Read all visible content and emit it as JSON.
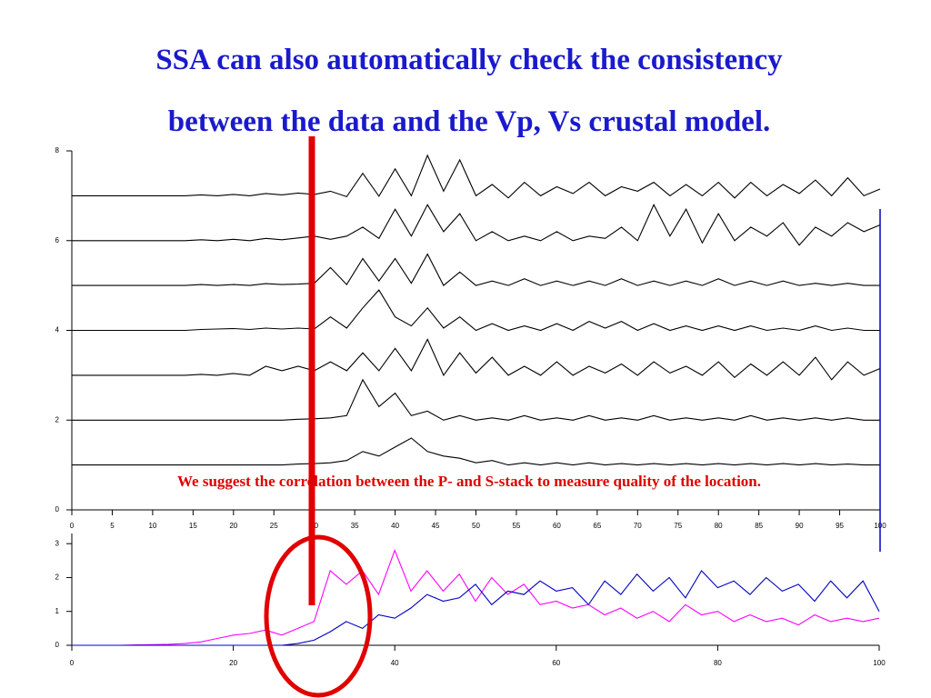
{
  "slide": {
    "title": [
      "SSA can also automatically check the consistency",
      "between the data and the Vp, Vs crustal model."
    ],
    "note": "We suggest the correlation between the P- and S-stack to measure quality of the location."
  },
  "chart_data": [
    {
      "type": "line",
      "xlim": [
        0,
        100
      ],
      "ylim": [
        0,
        8
      ],
      "xticks": [
        0,
        5,
        10,
        15,
        20,
        25,
        30,
        35,
        40,
        45,
        50,
        55,
        60,
        65,
        70,
        75,
        80,
        85,
        90,
        95,
        100
      ],
      "yticks": [
        0,
        2,
        4,
        6,
        8
      ],
      "x": [
        0,
        2,
        4,
        6,
        8,
        10,
        12,
        14,
        16,
        18,
        20,
        22,
        24,
        26,
        28,
        30,
        32,
        34,
        36,
        38,
        40,
        42,
        44,
        46,
        48,
        50,
        52,
        54,
        56,
        58,
        60,
        62,
        64,
        66,
        68,
        70,
        72,
        74,
        76,
        78,
        80,
        82,
        84,
        86,
        88,
        90,
        92,
        94,
        96,
        98,
        100
      ],
      "series": [
        {
          "color": "#000000",
          "values": [
            7,
            7,
            7,
            7,
            7,
            7,
            7,
            7,
            7.02,
            7,
            7.03,
            7,
            7.05,
            7.02,
            7.06,
            7.03,
            7.1,
            6.98,
            7.5,
            6.99,
            7.6,
            7.0,
            7.9,
            7.1,
            7.8,
            7.0,
            7.25,
            6.95,
            7.3,
            7.0,
            7.2,
            7.05,
            7.3,
            7.0,
            7.2,
            7.1,
            7.3,
            7.0,
            7.25,
            7.0,
            7.3,
            6.95,
            7.3,
            7.0,
            7.25,
            7.05,
            7.35,
            7.0,
            7.4,
            7.0,
            7.15
          ]
        },
        {
          "color": "#000000",
          "values": [
            6,
            6,
            6,
            6,
            6,
            6,
            6,
            6,
            6.02,
            6,
            6.03,
            6,
            6.05,
            6.02,
            6.06,
            6.1,
            6.03,
            6.1,
            6.3,
            6.05,
            6.7,
            6.1,
            6.8,
            6.2,
            6.6,
            6.0,
            6.2,
            6.0,
            6.1,
            6.0,
            6.2,
            6.0,
            6.1,
            6.05,
            6.3,
            6.0,
            6.8,
            6.1,
            6.7,
            5.95,
            6.6,
            6.0,
            6.3,
            6.1,
            6.4,
            5.9,
            6.3,
            6.1,
            6.4,
            6.2,
            6.35
          ]
        },
        {
          "color": "#000000",
          "values": [
            5,
            5,
            5,
            5,
            5,
            5,
            5,
            5,
            5.02,
            5,
            5.02,
            5,
            5.04,
            5.02,
            5.03,
            5.05,
            5.4,
            5.02,
            5.6,
            5.1,
            5.6,
            5.05,
            5.7,
            5.0,
            5.3,
            5.0,
            5.1,
            5.0,
            5.15,
            5.0,
            5.1,
            5.0,
            5.1,
            5.0,
            5.15,
            5.0,
            5.1,
            5.0,
            5.1,
            5.0,
            5.15,
            5.0,
            5.1,
            5.0,
            5.1,
            5.0,
            5.05,
            5.0,
            5.05,
            5.0,
            5.0
          ]
        },
        {
          "color": "#000000",
          "values": [
            4,
            4,
            4,
            4,
            4,
            4,
            4,
            4,
            4.02,
            4.03,
            4.04,
            4.02,
            4.05,
            4.03,
            4.05,
            4.03,
            4.3,
            4.05,
            4.5,
            4.9,
            4.3,
            4.1,
            4.5,
            4.05,
            4.3,
            4.0,
            4.15,
            4.0,
            4.1,
            4.0,
            4.15,
            4.0,
            4.2,
            4.05,
            4.2,
            4.0,
            4.15,
            4.0,
            4.1,
            4.0,
            4.1,
            4.0,
            4.1,
            4.0,
            4.05,
            4.0,
            4.1,
            4.0,
            4.05,
            4.0,
            4.0
          ]
        },
        {
          "color": "#000000",
          "values": [
            3,
            3,
            3,
            3,
            3,
            3,
            3,
            3,
            3.02,
            3,
            3.04,
            3.0,
            3.2,
            3.1,
            3.2,
            3.1,
            3.3,
            3.1,
            3.5,
            3.1,
            3.6,
            3.1,
            3.8,
            3.0,
            3.5,
            3.05,
            3.4,
            3.0,
            3.2,
            3.0,
            3.3,
            3.0,
            3.2,
            3.05,
            3.25,
            3.0,
            3.3,
            3.05,
            3.2,
            3.0,
            3.3,
            2.95,
            3.25,
            3.0,
            3.3,
            3.0,
            3.4,
            2.9,
            3.3,
            3.0,
            3.15
          ]
        },
        {
          "color": "#000000",
          "values": [
            2,
            2,
            2,
            2,
            2,
            2,
            2,
            2,
            2,
            2,
            2,
            2,
            2,
            2,
            2.02,
            2.03,
            2.05,
            2.1,
            2.9,
            2.3,
            2.6,
            2.1,
            2.2,
            2.0,
            2.1,
            2.0,
            2.05,
            2.0,
            2.1,
            2.0,
            2.05,
            2.0,
            2.1,
            2.0,
            2.05,
            2.0,
            2.1,
            2.0,
            2.05,
            2.0,
            2.05,
            2.0,
            2.1,
            2.0,
            2.05,
            2.0,
            2.05,
            2.0,
            2.05,
            2.0,
            2.0
          ]
        },
        {
          "color": "#000000",
          "values": [
            1,
            1,
            1,
            1,
            1,
            1,
            1,
            1,
            1,
            1,
            1,
            1,
            1,
            1,
            1.02,
            1.03,
            1.05,
            1.1,
            1.3,
            1.2,
            1.4,
            1.6,
            1.3,
            1.2,
            1.15,
            1.05,
            1.1,
            1.0,
            1.05,
            1.0,
            1.05,
            1.0,
            1.05,
            1.0,
            1.03,
            1.0,
            1.03,
            1.0,
            1.03,
            1.0,
            1.03,
            1.0,
            1.03,
            1.0,
            1.03,
            1.0,
            1.03,
            1.0,
            1.02,
            1.0,
            1.0
          ]
        }
      ]
    },
    {
      "type": "line",
      "xlim": [
        0,
        100
      ],
      "ylim": [
        0,
        3.3
      ],
      "xticks": [
        0,
        20,
        40,
        60,
        80,
        100
      ],
      "yticks": [
        0,
        1,
        2,
        3
      ],
      "x": [
        0,
        2,
        4,
        6,
        8,
        10,
        12,
        14,
        16,
        18,
        20,
        22,
        24,
        26,
        28,
        30,
        32,
        34,
        36,
        38,
        40,
        42,
        44,
        46,
        48,
        50,
        52,
        54,
        56,
        58,
        60,
        62,
        64,
        66,
        68,
        70,
        72,
        74,
        76,
        78,
        80,
        82,
        84,
        86,
        88,
        90,
        92,
        94,
        96,
        98,
        100
      ],
      "series": [
        {
          "color": "#ff00ff",
          "values": [
            0,
            0,
            0,
            0,
            0.01,
            0.02,
            0.03,
            0.05,
            0.1,
            0.2,
            0.3,
            0.35,
            0.45,
            0.3,
            0.5,
            0.7,
            2.2,
            1.8,
            2.2,
            1.5,
            2.8,
            1.6,
            2.2,
            1.6,
            2.1,
            1.3,
            2.0,
            1.5,
            1.8,
            1.2,
            1.3,
            1.1,
            1.2,
            0.9,
            1.1,
            0.8,
            1.0,
            0.7,
            1.2,
            0.9,
            1.0,
            0.7,
            0.9,
            0.7,
            0.8,
            0.6,
            0.9,
            0.7,
            0.8,
            0.7,
            0.8
          ]
        },
        {
          "color": "#0000c0",
          "values": [
            0,
            0,
            0,
            0,
            0,
            0,
            0,
            0,
            0,
            0,
            0,
            0,
            0,
            0,
            0.05,
            0.15,
            0.4,
            0.7,
            0.5,
            0.9,
            0.8,
            1.1,
            1.5,
            1.3,
            1.4,
            1.8,
            1.2,
            1.6,
            1.5,
            1.9,
            1.6,
            1.7,
            1.2,
            1.9,
            1.5,
            2.1,
            1.6,
            2.0,
            1.4,
            2.2,
            1.7,
            1.9,
            1.5,
            2.0,
            1.6,
            1.8,
            1.3,
            1.9,
            1.4,
            1.9,
            1.0
          ]
        }
      ]
    }
  ]
}
